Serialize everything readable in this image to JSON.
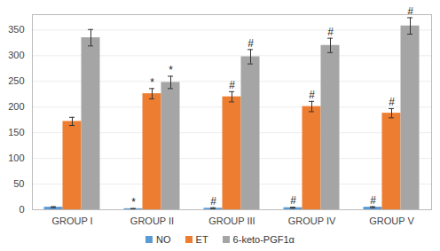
{
  "chart_data": {
    "type": "bar",
    "categories": [
      "GROUP I",
      "GROUP II",
      "GROUP III",
      "GROUP IV",
      "GROUP V"
    ],
    "series": [
      {
        "name": "NO",
        "color": "#5B9BD5",
        "values": [
          5,
          2,
          3,
          4,
          5
        ],
        "errors": [
          1,
          0.5,
          1,
          1,
          1
        ],
        "annotations": [
          null,
          "*",
          "#",
          "#",
          "#"
        ]
      },
      {
        "name": "ET",
        "color": "#ED7D31",
        "values": [
          172,
          226,
          220,
          201,
          188
        ],
        "errors": [
          8,
          10,
          10,
          10,
          9
        ],
        "annotations": [
          null,
          "*",
          "#",
          "#",
          "#"
        ]
      },
      {
        "name": "6-keto-PGF1α",
        "color": "#A5A5A5",
        "values": [
          335,
          248,
          298,
          320,
          358
        ],
        "errors": [
          16,
          12,
          14,
          14,
          16
        ],
        "annotations": [
          null,
          "*",
          "#",
          "#",
          "#"
        ]
      }
    ],
    "ylim": [
      0,
      380
    ],
    "yticks": [
      0,
      50,
      100,
      150,
      200,
      250,
      300,
      350
    ],
    "grid": true,
    "legend": "bottom"
  }
}
